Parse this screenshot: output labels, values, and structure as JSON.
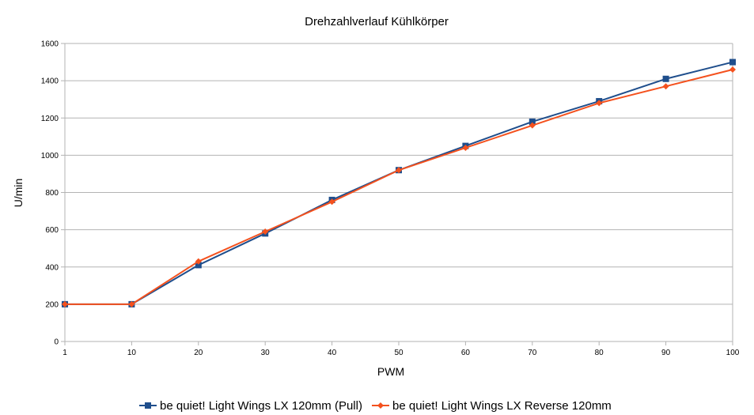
{
  "chart_data": {
    "type": "line",
    "title": "Drehzahlverlauf Kühlkörper",
    "xlabel": "PWM",
    "ylabel": "U/min",
    "categories": [
      "1",
      "10",
      "20",
      "30",
      "40",
      "50",
      "60",
      "70",
      "80",
      "90",
      "100"
    ],
    "ylim": [
      0,
      1600
    ],
    "yticks": [
      "0",
      "200",
      "400",
      "600",
      "800",
      "1000",
      "1200",
      "1400",
      "1600"
    ],
    "grid": true,
    "legend_position": "bottom",
    "series": [
      {
        "name": "be quiet! Light Wings LX 120mm (Pull)",
        "color": "#1f4e8c",
        "marker": "square",
        "values": [
          200,
          200,
          410,
          580,
          760,
          920,
          1050,
          1180,
          1290,
          1410,
          1500
        ]
      },
      {
        "name": "be quiet! Light Wings LX Reverse 120mm",
        "color": "#f4511e",
        "marker": "diamond",
        "values": [
          200,
          200,
          430,
          590,
          750,
          920,
          1040,
          1160,
          1280,
          1370,
          1460
        ]
      }
    ]
  }
}
